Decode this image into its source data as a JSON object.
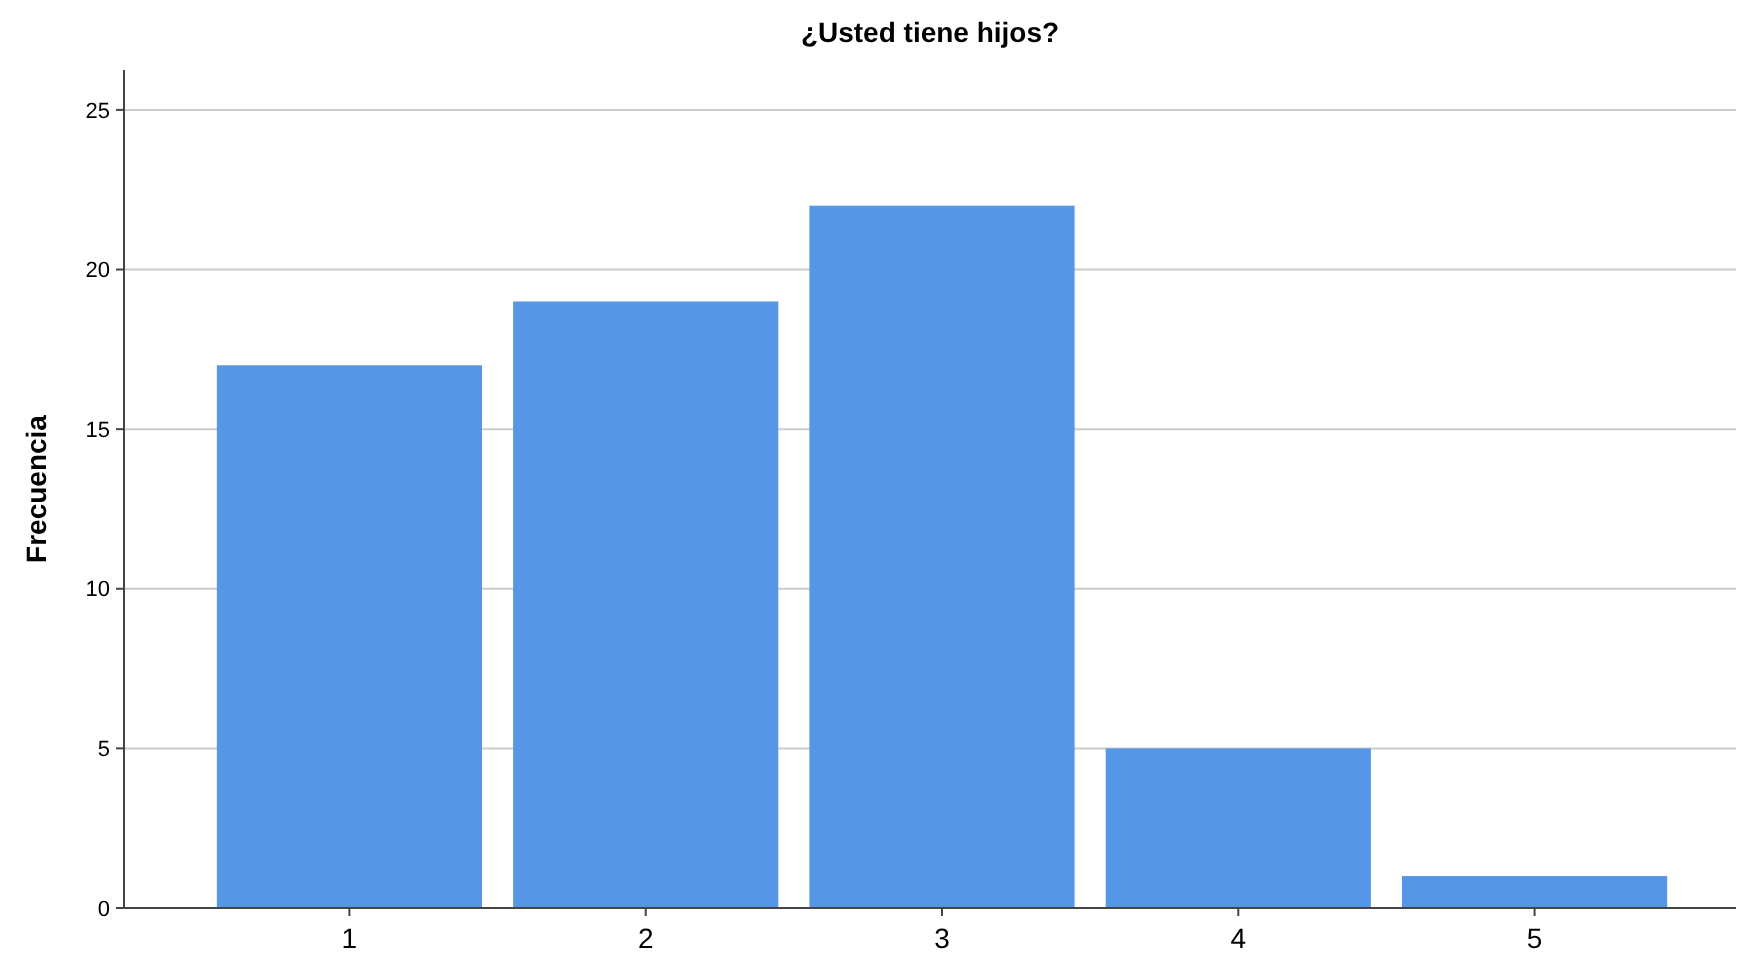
{
  "chart_data": {
    "type": "bar",
    "title": "¿Usted tiene hijos?",
    "ylabel": "Frecuencia",
    "categories": [
      "1",
      "2",
      "3",
      "4",
      "5"
    ],
    "values": [
      17,
      19,
      22,
      5,
      1
    ],
    "color": "#5596e6",
    "ylim": [
      0,
      26.25
    ],
    "yticks": [
      0,
      5,
      10,
      15,
      20,
      25
    ],
    "grid": "y"
  }
}
